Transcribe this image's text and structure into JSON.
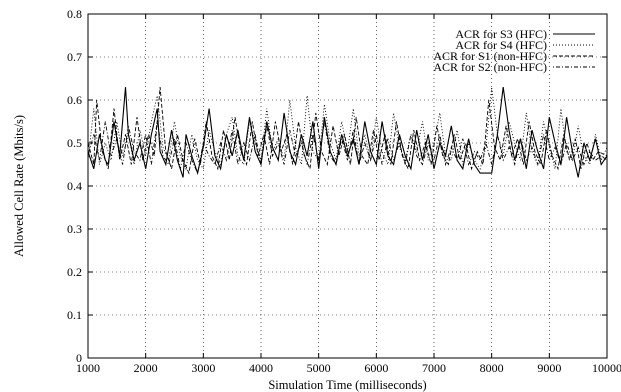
{
  "chart_data": {
    "type": "line",
    "xlabel": "Simulation Time (milliseconds)",
    "ylabel": "Allowed Cell Rate (Mbits/s)",
    "xlim": [
      1000,
      10000
    ],
    "ylim": [
      0,
      0.8
    ],
    "xticks": [
      1000,
      2000,
      3000,
      4000,
      5000,
      6000,
      7000,
      8000,
      9000,
      10000
    ],
    "yticks": [
      0,
      0.1,
      0.2,
      0.3,
      0.4,
      0.5,
      0.6,
      0.7,
      0.8
    ],
    "xtick_labels": [
      "1000",
      "2000",
      "3000",
      "4000",
      "5000",
      "6000",
      "7000",
      "8000",
      "9000",
      "10000"
    ],
    "ytick_labels": [
      "0",
      "0.1",
      "0.2",
      "0.3",
      "0.4",
      "0.5",
      "0.6",
      "0.7",
      "0.8"
    ],
    "grid": true,
    "legend_position": "top-right",
    "series": [
      {
        "name": "ACR for S3 (HFC)",
        "style": "solid",
        "x": [
          1000,
          1100,
          1200,
          1300,
          1350,
          1450,
          1550,
          1650,
          1700,
          1800,
          1900,
          2000,
          2100,
          2200,
          2250,
          2350,
          2450,
          2550,
          2650,
          2700,
          2800,
          2900,
          3000,
          3100,
          3200,
          3300,
          3400,
          3500,
          3600,
          3700,
          3800,
          3900,
          4000,
          4100,
          4200,
          4300,
          4400,
          4500,
          4600,
          4700,
          4800,
          4900,
          5000,
          5100,
          5200,
          5300,
          5400,
          5500,
          5600,
          5700,
          5800,
          5900,
          6000,
          6100,
          6200,
          6300,
          6400,
          6500,
          6600,
          6700,
          6800,
          6900,
          7000,
          7100,
          7200,
          7300,
          7400,
          7500,
          7600,
          7700,
          7800,
          7900,
          8000,
          8100,
          8200,
          8300,
          8400,
          8500,
          8600,
          8700,
          8800,
          8900,
          9000,
          9100,
          9200,
          9300,
          9400,
          9500,
          9600,
          9700,
          9800,
          9900,
          10000
        ],
        "y": [
          0.48,
          0.44,
          0.52,
          0.46,
          0.45,
          0.55,
          0.47,
          0.63,
          0.52,
          0.46,
          0.5,
          0.44,
          0.52,
          0.58,
          0.48,
          0.45,
          0.53,
          0.46,
          0.42,
          0.52,
          0.47,
          0.43,
          0.49,
          0.58,
          0.47,
          0.44,
          0.52,
          0.47,
          0.53,
          0.46,
          0.56,
          0.48,
          0.45,
          0.55,
          0.49,
          0.46,
          0.57,
          0.48,
          0.45,
          0.52,
          0.47,
          0.55,
          0.44,
          0.56,
          0.48,
          0.45,
          0.52,
          0.47,
          0.51,
          0.45,
          0.55,
          0.48,
          0.45,
          0.55,
          0.47,
          0.45,
          0.52,
          0.47,
          0.44,
          0.53,
          0.46,
          0.52,
          0.44,
          0.5,
          0.47,
          0.54,
          0.46,
          0.44,
          0.51,
          0.45,
          0.43,
          0.43,
          0.43,
          0.52,
          0.63,
          0.53,
          0.46,
          0.51,
          0.44,
          0.53,
          0.48,
          0.44,
          0.56,
          0.5,
          0.45,
          0.56,
          0.48,
          0.42,
          0.5,
          0.46,
          0.51,
          0.45,
          0.47
        ]
      },
      {
        "name": "ACR for S4 (HFC)",
        "style": "dotted",
        "x": [
          1000,
          1100,
          1200,
          1300,
          1400,
          1500,
          1600,
          1700,
          1800,
          1900,
          2000,
          2100,
          2200,
          2300,
          2400,
          2500,
          2600,
          2700,
          2800,
          2900,
          3000,
          3100,
          3200,
          3300,
          3400,
          3500,
          3600,
          3700,
          3800,
          3900,
          4000,
          4100,
          4200,
          4300,
          4400,
          4500,
          4600,
          4700,
          4800,
          4900,
          5000,
          5100,
          5200,
          5300,
          5400,
          5500,
          5600,
          5700,
          5800,
          5900,
          6000,
          6100,
          6200,
          6300,
          6400,
          6500,
          6600,
          6700,
          6800,
          6900,
          7000,
          7100,
          7200,
          7300,
          7400,
          7500,
          7600,
          7700,
          7800,
          7900,
          8000,
          8100,
          8200,
          8300,
          8400,
          8500,
          8600,
          8700,
          8800,
          8900,
          9000,
          9100,
          9200,
          9300,
          9400,
          9500,
          9600,
          9700,
          9800,
          9900,
          10000
        ],
        "y": [
          0.46,
          0.58,
          0.45,
          0.5,
          0.46,
          0.55,
          0.47,
          0.52,
          0.45,
          0.53,
          0.47,
          0.55,
          0.61,
          0.49,
          0.46,
          0.55,
          0.47,
          0.44,
          0.52,
          0.46,
          0.44,
          0.53,
          0.48,
          0.45,
          0.52,
          0.56,
          0.47,
          0.45,
          0.55,
          0.5,
          0.46,
          0.58,
          0.48,
          0.51,
          0.46,
          0.6,
          0.49,
          0.45,
          0.61,
          0.48,
          0.46,
          0.59,
          0.5,
          0.46,
          0.55,
          0.48,
          0.58,
          0.47,
          0.52,
          0.46,
          0.56,
          0.48,
          0.45,
          0.57,
          0.49,
          0.46,
          0.52,
          0.48,
          0.55,
          0.46,
          0.5,
          0.57,
          0.47,
          0.46,
          0.53,
          0.45,
          0.5,
          0.46,
          0.44,
          0.49,
          0.63,
          0.52,
          0.47,
          0.55,
          0.5,
          0.46,
          0.57,
          0.48,
          0.45,
          0.55,
          0.49,
          0.44,
          0.58,
          0.48,
          0.46,
          0.54,
          0.47,
          0.45,
          0.52,
          0.46,
          0.49
        ]
      },
      {
        "name": "ACR for S1 (non-HFC)",
        "style": "dashed",
        "x": [
          1000,
          1100,
          1150,
          1250,
          1350,
          1450,
          1550,
          1650,
          1750,
          1850,
          1950,
          2050,
          2150,
          2250,
          2350,
          2450,
          2550,
          2650,
          2750,
          2850,
          2950,
          3050,
          3150,
          3250,
          3350,
          3450,
          3550,
          3650,
          3750,
          3850,
          3950,
          4050,
          4150,
          4250,
          4350,
          4450,
          4550,
          4650,
          4750,
          4850,
          4950,
          5050,
          5150,
          5250,
          5350,
          5450,
          5550,
          5650,
          5750,
          5850,
          5950,
          6050,
          6150,
          6250,
          6350,
          6450,
          6550,
          6650,
          6750,
          6850,
          6950,
          7050,
          7150,
          7250,
          7350,
          7450,
          7550,
          7650,
          7750,
          7850,
          7950,
          8050,
          8150,
          8250,
          8350,
          8450,
          8550,
          8650,
          8750,
          8850,
          8950,
          9050,
          9150,
          9250,
          9350,
          9450,
          9550,
          9650,
          9750,
          9850,
          10000
        ],
        "y": [
          0.5,
          0.45,
          0.6,
          0.48,
          0.44,
          0.58,
          0.46,
          0.52,
          0.45,
          0.56,
          0.46,
          0.52,
          0.47,
          0.63,
          0.48,
          0.44,
          0.52,
          0.46,
          0.43,
          0.51,
          0.45,
          0.55,
          0.47,
          0.44,
          0.53,
          0.46,
          0.56,
          0.48,
          0.45,
          0.55,
          0.47,
          0.52,
          0.45,
          0.55,
          0.48,
          0.52,
          0.45,
          0.55,
          0.47,
          0.44,
          0.57,
          0.48,
          0.45,
          0.54,
          0.47,
          0.52,
          0.45,
          0.56,
          0.47,
          0.45,
          0.53,
          0.46,
          0.52,
          0.45,
          0.55,
          0.47,
          0.44,
          0.53,
          0.46,
          0.5,
          0.45,
          0.54,
          0.47,
          0.45,
          0.52,
          0.46,
          0.5,
          0.44,
          0.48,
          0.45,
          0.6,
          0.49,
          0.46,
          0.54,
          0.47,
          0.51,
          0.45,
          0.55,
          0.48,
          0.45,
          0.53,
          0.47,
          0.44,
          0.52,
          0.46,
          0.51,
          0.44,
          0.5,
          0.46,
          0.48,
          0.47
        ]
      },
      {
        "name": "ACR for S2 (non-HFC)",
        "style": "dash-dot",
        "x": [
          1000,
          1100,
          1200,
          1300,
          1400,
          1500,
          1600,
          1700,
          1800,
          1900,
          2000,
          2100,
          2200,
          2300,
          2400,
          2500,
          2600,
          2700,
          2800,
          2900,
          3000,
          3100,
          3200,
          3300,
          3400,
          3500,
          3600,
          3700,
          3800,
          3900,
          4000,
          4100,
          4200,
          4300,
          4400,
          4500,
          4600,
          4700,
          4800,
          4900,
          5000,
          5100,
          5200,
          5300,
          5400,
          5500,
          5600,
          5700,
          5800,
          5900,
          6000,
          6100,
          6200,
          6300,
          6400,
          6500,
          6600,
          6700,
          6800,
          6900,
          7000,
          7100,
          7200,
          7300,
          7400,
          7500,
          7600,
          7700,
          7800,
          7900,
          8000,
          8100,
          8200,
          8300,
          8400,
          8500,
          8600,
          8700,
          8800,
          8900,
          9000,
          9100,
          9200,
          9300,
          9400,
          9500,
          9600,
          9700,
          9800,
          9900,
          10000
        ],
        "y": [
          0.47,
          0.52,
          0.46,
          0.55,
          0.47,
          0.51,
          0.45,
          0.54,
          0.48,
          0.46,
          0.52,
          0.45,
          0.55,
          0.47,
          0.45,
          0.51,
          0.44,
          0.5,
          0.46,
          0.43,
          0.5,
          0.47,
          0.45,
          0.5,
          0.46,
          0.53,
          0.45,
          0.5,
          0.46,
          0.52,
          0.45,
          0.54,
          0.47,
          0.5,
          0.45,
          0.53,
          0.47,
          0.5,
          0.45,
          0.52,
          0.46,
          0.55,
          0.47,
          0.45,
          0.51,
          0.46,
          0.53,
          0.45,
          0.5,
          0.46,
          0.52,
          0.45,
          0.51,
          0.46,
          0.5,
          0.45,
          0.52,
          0.47,
          0.45,
          0.5,
          0.46,
          0.52,
          0.45,
          0.49,
          0.46,
          0.51,
          0.45,
          0.48,
          0.46,
          0.5,
          0.45,
          0.52,
          0.46,
          0.49,
          0.45,
          0.51,
          0.46,
          0.49,
          0.45,
          0.52,
          0.46,
          0.49,
          0.45,
          0.5,
          0.46,
          0.49,
          0.45,
          0.48,
          0.46,
          0.47,
          0.46
        ]
      }
    ]
  }
}
